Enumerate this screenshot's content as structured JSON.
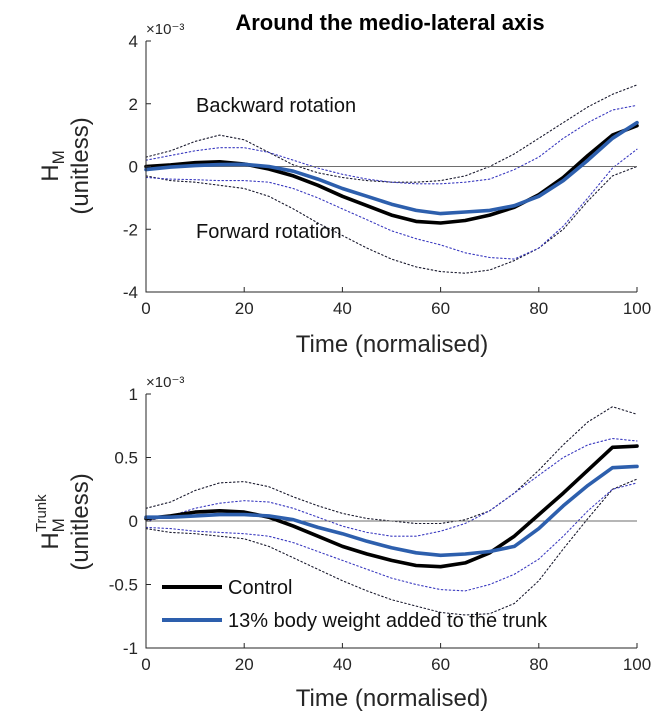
{
  "title": "Around the medio-lateral axis",
  "colors": {
    "control": "#000000",
    "trunk": "#2d5fad",
    "control_band": "#1a1a2e",
    "trunk_band": "#3a3ac0",
    "zero_line": "#6e6e6e"
  },
  "legend": {
    "control": "Control",
    "trunk": "13% body weight added to the trunk"
  },
  "chart_data": [
    {
      "type": "line",
      "title": "Around the medio-lateral axis",
      "xlabel": "Time (normalised)",
      "ylabel_main": "H",
      "ylabel_sub": "M",
      "ylabel_unit": "(unitless)",
      "exponent": "×10⁻³",
      "xlim": [
        0,
        100
      ],
      "ylim": [
        -4,
        4
      ],
      "xticks": [
        0,
        20,
        40,
        60,
        80,
        100
      ],
      "yticks": [
        -4,
        -2,
        0,
        2,
        4
      ],
      "annotations": [
        "Backward rotation",
        "Forward rotation"
      ],
      "x": [
        0,
        5,
        10,
        15,
        20,
        25,
        30,
        35,
        40,
        45,
        50,
        55,
        60,
        65,
        70,
        75,
        80,
        85,
        90,
        95,
        100
      ],
      "series": [
        {
          "name": "Control",
          "values": [
            0.0,
            0.05,
            0.12,
            0.15,
            0.08,
            -0.08,
            -0.3,
            -0.6,
            -0.95,
            -1.25,
            -1.55,
            -1.75,
            -1.8,
            -1.72,
            -1.55,
            -1.3,
            -0.9,
            -0.35,
            0.35,
            1.0,
            1.3
          ]
        },
        {
          "name": "13% body weight added to the trunk",
          "values": [
            -0.1,
            -0.02,
            0.03,
            0.06,
            0.07,
            0.0,
            -0.15,
            -0.4,
            -0.7,
            -0.95,
            -1.2,
            -1.4,
            -1.5,
            -1.45,
            -1.4,
            -1.25,
            -0.95,
            -0.45,
            0.2,
            0.9,
            1.4
          ]
        },
        {
          "name": "Control upper",
          "values": [
            0.3,
            0.5,
            0.8,
            1.0,
            0.85,
            0.45,
            0.05,
            -0.2,
            -0.35,
            -0.45,
            -0.5,
            -0.5,
            -0.45,
            -0.3,
            0.0,
            0.4,
            0.9,
            1.4,
            1.9,
            2.3,
            2.6
          ]
        },
        {
          "name": "Control lower",
          "values": [
            -0.3,
            -0.45,
            -0.5,
            -0.6,
            -0.7,
            -0.95,
            -1.35,
            -1.8,
            -2.2,
            -2.6,
            -2.95,
            -3.2,
            -3.35,
            -3.4,
            -3.3,
            -3.0,
            -2.6,
            -2.0,
            -1.1,
            -0.3,
            0.0
          ]
        },
        {
          "name": "Trunk upper",
          "values": [
            0.2,
            0.35,
            0.5,
            0.6,
            0.6,
            0.45,
            0.2,
            -0.05,
            -0.25,
            -0.4,
            -0.5,
            -0.55,
            -0.55,
            -0.5,
            -0.4,
            -0.1,
            0.3,
            0.9,
            1.4,
            1.8,
            1.95
          ]
        },
        {
          "name": "Trunk lower",
          "values": [
            -0.35,
            -0.4,
            -0.42,
            -0.45,
            -0.45,
            -0.5,
            -0.7,
            -1.0,
            -1.35,
            -1.7,
            -2.05,
            -2.3,
            -2.5,
            -2.75,
            -2.9,
            -2.95,
            -2.6,
            -1.9,
            -1.0,
            -0.05,
            0.55
          ]
        }
      ]
    },
    {
      "type": "line",
      "title": "",
      "xlabel": "Time (normalised)",
      "ylabel_main": "H",
      "ylabel_sub": "M",
      "ylabel_sup": "Trunk",
      "ylabel_unit": "(unitless)",
      "exponent": "×10⁻³",
      "xlim": [
        0,
        100
      ],
      "ylim": [
        -1,
        1
      ],
      "xticks": [
        0,
        20,
        40,
        60,
        80,
        100
      ],
      "yticks": [
        -1,
        -0.5,
        0,
        0.5,
        1
      ],
      "x": [
        0,
        5,
        10,
        15,
        20,
        25,
        30,
        35,
        40,
        45,
        50,
        55,
        60,
        65,
        70,
        75,
        80,
        85,
        90,
        95,
        100
      ],
      "series": [
        {
          "name": "Control",
          "values": [
            0.02,
            0.04,
            0.07,
            0.08,
            0.07,
            0.03,
            -0.04,
            -0.12,
            -0.2,
            -0.26,
            -0.31,
            -0.35,
            -0.36,
            -0.33,
            -0.25,
            -0.12,
            0.05,
            0.22,
            0.4,
            0.58,
            0.59
          ]
        },
        {
          "name": "13% body weight added to the trunk",
          "values": [
            0.03,
            0.03,
            0.04,
            0.05,
            0.05,
            0.04,
            0.01,
            -0.05,
            -0.1,
            -0.16,
            -0.21,
            -0.25,
            -0.27,
            -0.26,
            -0.24,
            -0.2,
            -0.06,
            0.12,
            0.28,
            0.42,
            0.43
          ]
        },
        {
          "name": "Control upper",
          "values": [
            0.1,
            0.15,
            0.24,
            0.3,
            0.31,
            0.27,
            0.19,
            0.12,
            0.06,
            0.02,
            0.0,
            -0.02,
            -0.02,
            0.01,
            0.08,
            0.22,
            0.4,
            0.6,
            0.78,
            0.9,
            0.84
          ]
        },
        {
          "name": "Control lower",
          "values": [
            -0.06,
            -0.09,
            -0.1,
            -0.12,
            -0.14,
            -0.2,
            -0.29,
            -0.38,
            -0.47,
            -0.55,
            -0.62,
            -0.67,
            -0.72,
            -0.74,
            -0.73,
            -0.65,
            -0.47,
            -0.22,
            0.02,
            0.25,
            0.33
          ]
        },
        {
          "name": "Trunk upper",
          "values": [
            0.0,
            0.04,
            0.1,
            0.14,
            0.16,
            0.15,
            0.1,
            0.03,
            -0.04,
            -0.09,
            -0.12,
            -0.12,
            -0.08,
            -0.02,
            0.08,
            0.22,
            0.36,
            0.5,
            0.6,
            0.65,
            0.63
          ]
        },
        {
          "name": "Trunk lower",
          "values": [
            -0.05,
            -0.06,
            -0.08,
            -0.09,
            -0.1,
            -0.12,
            -0.17,
            -0.24,
            -0.31,
            -0.38,
            -0.45,
            -0.5,
            -0.54,
            -0.55,
            -0.5,
            -0.42,
            -0.3,
            -0.12,
            0.08,
            0.25,
            0.3
          ]
        }
      ]
    }
  ]
}
